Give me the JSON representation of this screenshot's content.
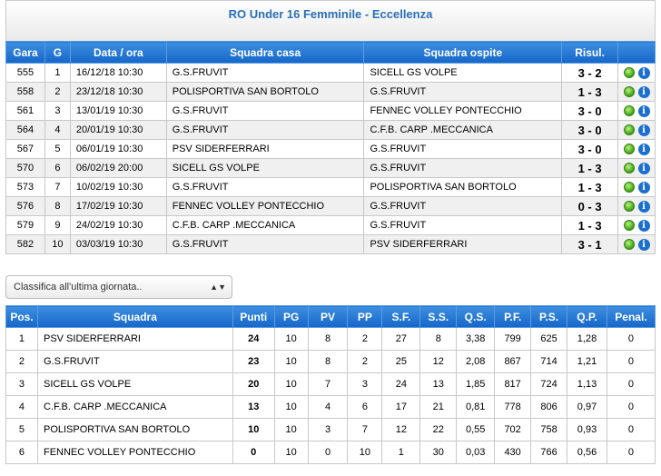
{
  "title": "RO Under 16 Femminile - Eccellenza",
  "games": {
    "headers": [
      "Gara",
      "G",
      "Data / ora",
      "Squadra casa",
      "Squadra ospite",
      "Risul."
    ],
    "rows": [
      {
        "gara": "555",
        "g": "1",
        "date": "16/12/18 10:30",
        "home": "G.S.FRUVIT",
        "away": "SICELL GS VOLPE",
        "result": "3 - 2"
      },
      {
        "gara": "558",
        "g": "2",
        "date": "23/12/18 10:30",
        "home": "POLISPORTIVA SAN BORTOLO",
        "away": "G.S.FRUVIT",
        "result": "1 - 3"
      },
      {
        "gara": "561",
        "g": "3",
        "date": "13/01/19 10:30",
        "home": "G.S.FRUVIT",
        "away": "FENNEC VOLLEY PONTECCHIO",
        "result": "3 - 0"
      },
      {
        "gara": "564",
        "g": "4",
        "date": "20/01/19 10:30",
        "home": "G.S.FRUVIT",
        "away": "C.F.B. CARP .MECCANICA",
        "result": "3 - 0"
      },
      {
        "gara": "567",
        "g": "5",
        "date": "06/01/19 10:30",
        "home": "PSV SIDERFERRARI",
        "away": "G.S.FRUVIT",
        "result": "3 - 0"
      },
      {
        "gara": "570",
        "g": "6",
        "date": "06/02/19 20:00",
        "home": "SICELL GS VOLPE",
        "away": "G.S.FRUVIT",
        "result": "1 - 3"
      },
      {
        "gara": "573",
        "g": "7",
        "date": "10/02/19 10:30",
        "home": "G.S.FRUVIT",
        "away": "POLISPORTIVA SAN BORTOLO",
        "result": "1 - 3"
      },
      {
        "gara": "576",
        "g": "8",
        "date": "17/02/19 10:30",
        "home": "FENNEC VOLLEY PONTECCHIO",
        "away": "G.S.FRUVIT",
        "result": "0 - 3"
      },
      {
        "gara": "579",
        "g": "9",
        "date": "24/02/19 10:30",
        "home": "C.F.B. CARP .MECCANICA",
        "away": "G.S.FRUVIT",
        "result": "1 - 3"
      },
      {
        "gara": "582",
        "g": "10",
        "date": "03/03/19 10:30",
        "home": "G.S.FRUVIT",
        "away": "PSV SIDERFERRARI",
        "result": "3 - 1"
      }
    ],
    "icons": [
      "status-green-dot-icon",
      "info-icon"
    ],
    "info_glyph": "i"
  },
  "select": {
    "value": "Classifica all'ultima giornata..",
    "arrow": "▲▼"
  },
  "standings": {
    "headers": [
      "Pos.",
      "Squadra",
      "Punti",
      "PG",
      "PV",
      "PP",
      "S.F.",
      "S.S.",
      "Q.S.",
      "P.F.",
      "P.S.",
      "Q.P.",
      "Penal."
    ],
    "rows": [
      [
        "1",
        "PSV SIDERFERRARI",
        "24",
        "10",
        "8",
        "2",
        "27",
        "8",
        "3,38",
        "799",
        "625",
        "1,28",
        "0"
      ],
      [
        "2",
        "G.S.FRUVIT",
        "23",
        "10",
        "8",
        "2",
        "25",
        "12",
        "2,08",
        "867",
        "714",
        "1,21",
        "0"
      ],
      [
        "3",
        "SICELL GS VOLPE",
        "20",
        "10",
        "7",
        "3",
        "24",
        "13",
        "1,85",
        "817",
        "724",
        "1,13",
        "0"
      ],
      [
        "4",
        "C.F.B. CARP .MECCANICA",
        "13",
        "10",
        "4",
        "6",
        "17",
        "21",
        "0,81",
        "778",
        "806",
        "0,97",
        "0"
      ],
      [
        "5",
        "POLISPORTIVA SAN BORTOLO",
        "10",
        "10",
        "3",
        "7",
        "12",
        "22",
        "0,55",
        "702",
        "758",
        "0,93",
        "0"
      ],
      [
        "6",
        "FENNEC VOLLEY PONTECCHIO",
        "0",
        "10",
        "0",
        "10",
        "1",
        "30",
        "0,03",
        "430",
        "766",
        "0,56",
        "0"
      ]
    ]
  },
  "colors": {
    "header_blue": "#1566c9",
    "title_blue": "#2a6fb7",
    "status_green": "#3ea01a"
  }
}
